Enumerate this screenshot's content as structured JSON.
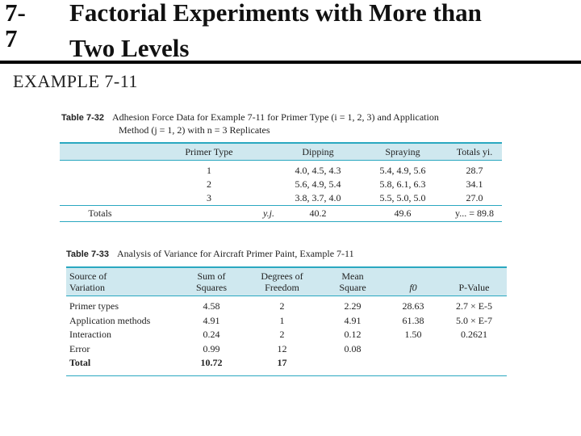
{
  "slide": {
    "number": "7-7",
    "title_line1": "Factorial Experiments with More than",
    "title_line2": "Two Levels",
    "example": "EXAMPLE 7-11"
  },
  "table1": {
    "label": "Table 7-32",
    "caption_line1": "Adhesion Force Data for Example 7-11 for Primer Type (i = 1, 2, 3) and Application",
    "caption_line2": "Method (j = 1, 2) with n = 3 Replicates",
    "headers": [
      "Primer Type",
      "Dipping",
      "Spraying",
      "Totals yi."
    ],
    "rows": [
      [
        "1",
        "4.0, 4.5, 4.3",
        "5.4, 4.9, 5.6",
        "28.7"
      ],
      [
        "2",
        "5.6, 4.9, 5.4",
        "5.8, 6.1, 6.3",
        "34.1"
      ],
      [
        "3",
        "3.8, 3.7, 4.0",
        "5.5, 5.0, 5.0",
        "27.0"
      ]
    ],
    "totals": [
      "Totals",
      "y.j.",
      "40.2",
      "49.6",
      "y... = 89.8"
    ]
  },
  "table2": {
    "label": "Table 7-33",
    "caption": "Analysis of Variance for Aircraft Primer Paint, Example 7-11",
    "headers": [
      [
        "Source of",
        "Variation"
      ],
      [
        "Sum of",
        "Squares"
      ],
      [
        "Degrees of",
        "Freedom"
      ],
      [
        "Mean",
        "Square"
      ],
      [
        "",
        "f0"
      ],
      [
        "",
        "P-Value"
      ]
    ],
    "rows": [
      [
        "Primer types",
        "4.58",
        "2",
        "2.29",
        "28.63",
        "2.7 × E-5"
      ],
      [
        "Application methods",
        "4.91",
        "1",
        "4.91",
        "61.38",
        "5.0 × E-7"
      ],
      [
        "Interaction",
        "0.24",
        "2",
        "0.12",
        "1.50",
        "0.2621"
      ],
      [
        "Error",
        "0.99",
        "12",
        "0.08",
        "",
        ""
      ],
      [
        "Total",
        "10.72",
        "17",
        "",
        "",
        ""
      ]
    ]
  }
}
